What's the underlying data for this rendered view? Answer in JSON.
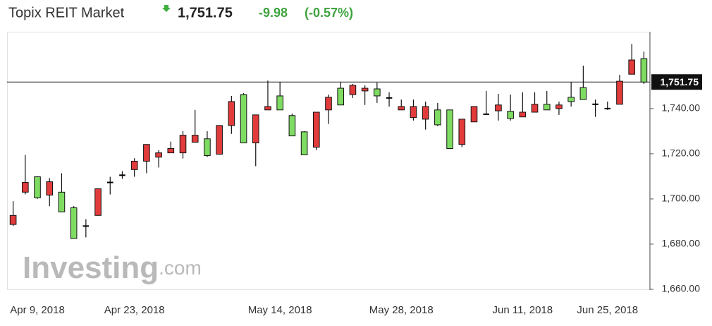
{
  "chart_data": {
    "type": "candlestick",
    "title": "Topix REIT Market",
    "price_label": "1,751.75",
    "last_price": 1751.75,
    "change": -9.98,
    "change_pct": "(-0.57%)",
    "watermark": {
      "brand": "Investing",
      "suffix": ".com"
    },
    "categories": [
      null,
      null,
      "Apr 9, 2018",
      null,
      null,
      null,
      null,
      null,
      null,
      null,
      "Apr 23, 2018",
      null,
      null,
      null,
      null,
      null,
      null,
      null,
      null,
      null,
      null,
      null,
      "May 14, 2018",
      null,
      null,
      null,
      null,
      null,
      null,
      null,
      null,
      null,
      "May 28, 2018",
      null,
      null,
      null,
      null,
      null,
      null,
      null,
      null,
      null,
      "Jun 11, 2018",
      null,
      null,
      null,
      null,
      null,
      null,
      "Jun 25, 2018",
      null,
      null,
      null
    ],
    "open": [
      1692.7,
      1707.3,
      1700.5,
      1707.6,
      1694.3,
      1682.5,
      1688,
      1704.5,
      1707.3,
      1710.5,
      1716.7,
      1724.1,
      1720.4,
      1722.3,
      1728.2,
      1728.2,
      1719.2,
      1732.5,
      1743.1,
      1724.8,
      1737.2,
      1740.9,
      1739.4,
      1727.9,
      1719.5,
      1738.4,
      1745,
      1741.6,
      1750.3,
      1749,
      1745.6,
      1744.7,
      1740.9,
      1740.9,
      1740.9,
      1732.8,
      1722.3,
      1735.3,
      1740.9,
      1737.5,
      1741.6,
      1735.6,
      1738.4,
      1741.9,
      1739.4,
      1741.6,
      1743.1,
      1744,
      1741.9,
      1740,
      1752.1,
      1761.5,
      1751.75
    ],
    "high": [
      1699,
      1719.5,
      1710,
      1709.2,
      1711.4,
      1696.8,
      1691,
      1704.5,
      1709.8,
      1712.3,
      1718,
      1724.1,
      1721.6,
      1725.4,
      1730,
      1739.4,
      1730,
      1732.5,
      1745.6,
      1746.8,
      1737.2,
      1752.4,
      1751.8,
      1737.8,
      1730,
      1738.4,
      1746.2,
      1751.8,
      1750.9,
      1750.3,
      1751.5,
      1747.2,
      1744,
      1744,
      1743.1,
      1742.5,
      1739.4,
      1735.3,
      1740.9,
      1747.8,
      1746.5,
      1746.2,
      1747.2,
      1747.2,
      1747.8,
      1743.1,
      1751.8,
      1759,
      1744,
      1743.1,
      1754.9,
      1768.6,
      1765.2
    ],
    "low": [
      1688,
      1702,
      1700,
      1696.8,
      1694.3,
      1682.5,
      1683,
      1692.7,
      1702,
      1708.9,
      1709.8,
      1711.4,
      1713.9,
      1720.4,
      1717.9,
      1725.1,
      1718.5,
      1719.8,
      1728.8,
      1724.8,
      1714.5,
      1739.4,
      1739.4,
      1727.9,
      1719.5,
      1721.6,
      1733.2,
      1741.6,
      1744.7,
      1741.6,
      1742.5,
      1740.9,
      1739.4,
      1734.7,
      1730.7,
      1732.2,
      1722.3,
      1722.9,
      1734.1,
      1737.5,
      1734.7,
      1734.7,
      1736.3,
      1738.4,
      1739.4,
      1737.2,
      1740.9,
      1744,
      1736.3,
      1739.4,
      1741.9,
      1755.2,
      1750.9
    ],
    "close": [
      1688.7,
      1703,
      1709.8,
      1701.7,
      1703,
      1696.1,
      1688,
      1692.7,
      1707.3,
      1710.5,
      1713,
      1716.7,
      1718.5,
      1720.4,
      1720.4,
      1725.1,
      1726.6,
      1719.8,
      1732.5,
      1746.2,
      1724.8,
      1739.4,
      1745.6,
      1736.9,
      1729.7,
      1722.9,
      1739.4,
      1749,
      1746.2,
      1747.8,
      1748.7,
      1744.7,
      1739.4,
      1736,
      1735.3,
      1739.4,
      1739.4,
      1724.1,
      1734.1,
      1737.5,
      1739,
      1738.8,
      1736.3,
      1738.4,
      1741.9,
      1740,
      1745,
      1749.3,
      1741.9,
      1740,
      1741.9,
      1755.2,
      1762.1
    ],
    "up_color": "#7fdc63",
    "down_color": "#e23b3b",
    "doji_color": "#000000",
    "ylim": [
      1660,
      1774
    ],
    "yticks": [
      {
        "value": 1660,
        "label": "1,660.00"
      },
      {
        "value": 1680,
        "label": "1,680.00"
      },
      {
        "value": 1700,
        "label": "1,700.00"
      },
      {
        "value": 1720,
        "label": "1,720.00"
      },
      {
        "value": 1740,
        "label": "1,740.00"
      }
    ],
    "grid": false
  }
}
